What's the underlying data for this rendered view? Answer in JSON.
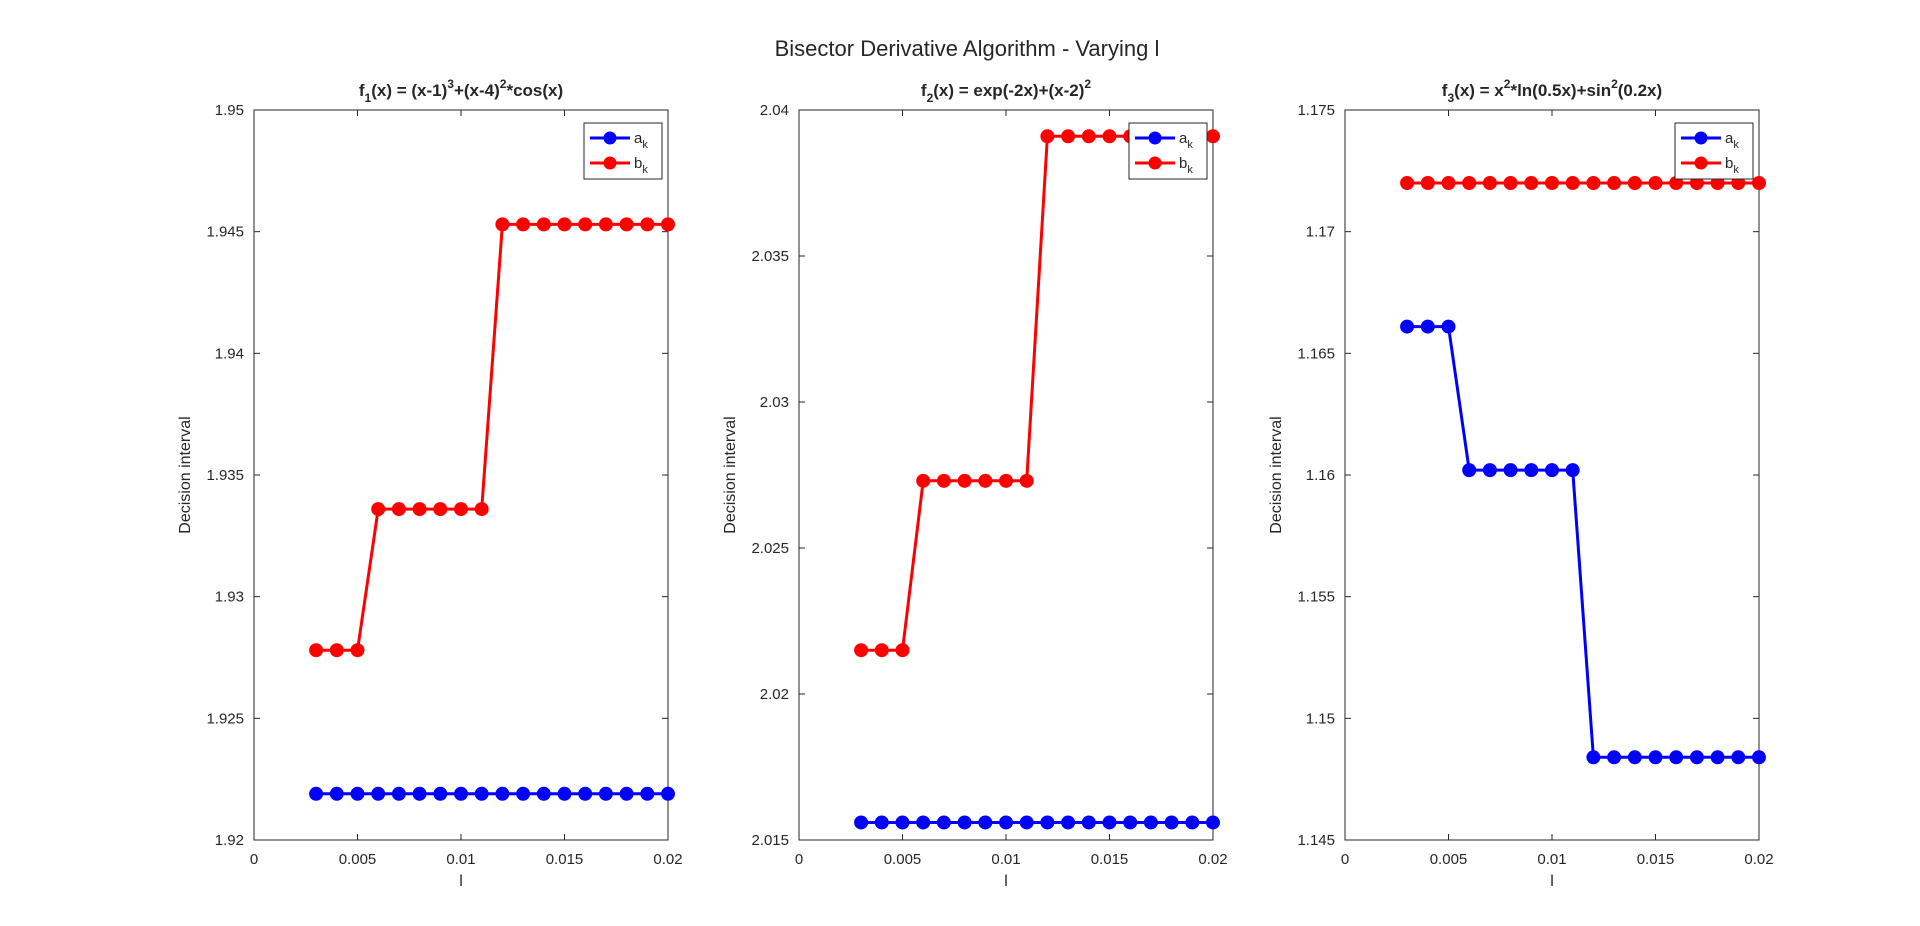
{
  "figure": {
    "suptitle": "Bisector Derivative Algorithm - Varying l"
  },
  "colors": {
    "a": "#0000ff",
    "b": "#ff0000",
    "axis": "#262626"
  },
  "chart_data": [
    {
      "type": "line",
      "title": {
        "base": "f",
        "sub": "1",
        "parts": [
          {
            "t": "(x) = (x-1)",
            "s": ""
          },
          {
            "t": "3",
            "s": "sup"
          },
          {
            "t": "+(x-4)",
            "s": ""
          },
          {
            "t": "2",
            "s": "sup"
          },
          {
            "t": "*cos(x)",
            "s": ""
          }
        ]
      },
      "xlabel": "l",
      "ylabel": "Decision interval",
      "xlim": [
        0,
        0.02
      ],
      "ylim": [
        1.92,
        1.95
      ],
      "xticks": [
        0,
        0.005,
        0.01,
        0.015,
        0.02
      ],
      "xtick_labels": [
        "0",
        "0.005",
        "0.01",
        "0.015",
        "0.02"
      ],
      "yticks": [
        1.92,
        1.925,
        1.93,
        1.935,
        1.94,
        1.945,
        1.95
      ],
      "ytick_labels": [
        "1.92",
        "1.925",
        "1.93",
        "1.935",
        "1.94",
        "1.945",
        "1.95"
      ],
      "legend": {
        "position": "top-right",
        "entries": [
          {
            "base": "a",
            "sub": "k"
          },
          {
            "base": "b",
            "sub": "k"
          }
        ]
      },
      "x": [
        0.003,
        0.004,
        0.005,
        0.006,
        0.007,
        0.008,
        0.009,
        0.01,
        0.011,
        0.012,
        0.013,
        0.014,
        0.015,
        0.016,
        0.017,
        0.018,
        0.019,
        0.02
      ],
      "series": [
        {
          "key": "a",
          "values": [
            1.9219,
            1.9219,
            1.9219,
            1.9219,
            1.9219,
            1.9219,
            1.9219,
            1.9219,
            1.9219,
            1.9219,
            1.9219,
            1.9219,
            1.9219,
            1.9219,
            1.9219,
            1.9219,
            1.9219,
            1.9219
          ]
        },
        {
          "key": "b",
          "values": [
            1.9278,
            1.9278,
            1.9278,
            1.9336,
            1.9336,
            1.9336,
            1.9336,
            1.9336,
            1.9336,
            1.9453,
            1.9453,
            1.9453,
            1.9453,
            1.9453,
            1.9453,
            1.9453,
            1.9453,
            1.9453
          ]
        }
      ]
    },
    {
      "type": "line",
      "title": {
        "base": "f",
        "sub": "2",
        "parts": [
          {
            "t": "(x) = exp(-2x)+(x-2)",
            "s": ""
          },
          {
            "t": "2",
            "s": "sup"
          }
        ]
      },
      "xlabel": "l",
      "ylabel": "Decision interval",
      "xlim": [
        0,
        0.02
      ],
      "ylim": [
        2.015,
        2.04
      ],
      "xticks": [
        0,
        0.005,
        0.01,
        0.015,
        0.02
      ],
      "xtick_labels": [
        "0",
        "0.005",
        "0.01",
        "0.015",
        "0.02"
      ],
      "yticks": [
        2.015,
        2.02,
        2.025,
        2.03,
        2.035,
        2.04
      ],
      "ytick_labels": [
        "2.015",
        "2.02",
        "2.025",
        "2.03",
        "2.035",
        "2.04"
      ],
      "legend": {
        "position": "top-right",
        "entries": [
          {
            "base": "a",
            "sub": "k"
          },
          {
            "base": "b",
            "sub": "k"
          }
        ]
      },
      "x": [
        0.003,
        0.004,
        0.005,
        0.006,
        0.007,
        0.008,
        0.009,
        0.01,
        0.011,
        0.012,
        0.013,
        0.014,
        0.015,
        0.016,
        0.017,
        0.018,
        0.019,
        0.02
      ],
      "series": [
        {
          "key": "a",
          "values": [
            2.0156,
            2.0156,
            2.0156,
            2.0156,
            2.0156,
            2.0156,
            2.0156,
            2.0156,
            2.0156,
            2.0156,
            2.0156,
            2.0156,
            2.0156,
            2.0156,
            2.0156,
            2.0156,
            2.0156,
            2.0156
          ]
        },
        {
          "key": "b",
          "values": [
            2.0215,
            2.0215,
            2.0215,
            2.0273,
            2.0273,
            2.0273,
            2.0273,
            2.0273,
            2.0273,
            2.0391,
            2.0391,
            2.0391,
            2.0391,
            2.0391,
            2.0391,
            2.0391,
            2.0391,
            2.0391
          ]
        }
      ]
    },
    {
      "type": "line",
      "title": {
        "base": "f",
        "sub": "3",
        "parts": [
          {
            "t": "(x) = x",
            "s": ""
          },
          {
            "t": "2",
            "s": "sup"
          },
          {
            "t": "*ln(0.5x)+sin",
            "s": ""
          },
          {
            "t": "2",
            "s": "sup"
          },
          {
            "t": "(0.2x)",
            "s": ""
          }
        ]
      },
      "xlabel": "l",
      "ylabel": "Decision interval",
      "xlim": [
        0,
        0.02
      ],
      "ylim": [
        1.145,
        1.175
      ],
      "xticks": [
        0,
        0.005,
        0.01,
        0.015,
        0.02
      ],
      "xtick_labels": [
        "0",
        "0.005",
        "0.01",
        "0.015",
        "0.02"
      ],
      "yticks": [
        1.145,
        1.15,
        1.155,
        1.16,
        1.165,
        1.17,
        1.175
      ],
      "ytick_labels": [
        "1.145",
        "1.15",
        "1.155",
        "1.16",
        "1.165",
        "1.17",
        "1.175"
      ],
      "legend": {
        "position": "top-right",
        "entries": [
          {
            "base": "a",
            "sub": "k"
          },
          {
            "base": "b",
            "sub": "k"
          }
        ]
      },
      "x": [
        0.003,
        0.004,
        0.005,
        0.006,
        0.007,
        0.008,
        0.009,
        0.01,
        0.011,
        0.012,
        0.013,
        0.014,
        0.015,
        0.016,
        0.017,
        0.018,
        0.019,
        0.02
      ],
      "series": [
        {
          "key": "a",
          "values": [
            1.1661,
            1.1661,
            1.1661,
            1.1602,
            1.1602,
            1.1602,
            1.1602,
            1.1602,
            1.1602,
            1.1484,
            1.1484,
            1.1484,
            1.1484,
            1.1484,
            1.1484,
            1.1484,
            1.1484,
            1.1484
          ]
        },
        {
          "key": "b",
          "values": [
            1.172,
            1.172,
            1.172,
            1.172,
            1.172,
            1.172,
            1.172,
            1.172,
            1.172,
            1.172,
            1.172,
            1.172,
            1.172,
            1.172,
            1.172,
            1.172,
            1.172,
            1.172
          ]
        }
      ]
    }
  ]
}
